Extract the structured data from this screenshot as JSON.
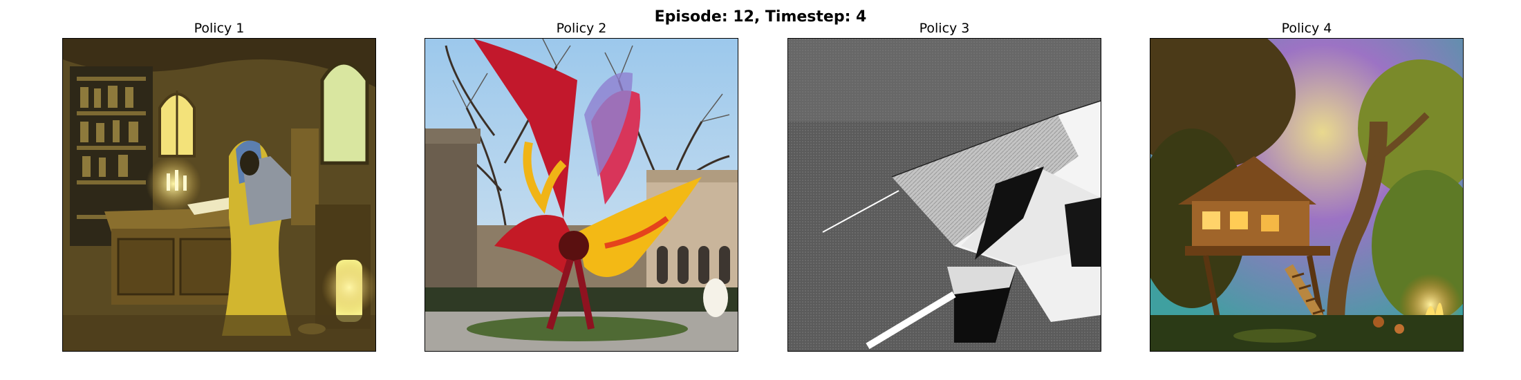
{
  "figure": {
    "suptitle": "Episode: 12, Timestep: 4",
    "panels": [
      {
        "title": "Policy 1"
      },
      {
        "title": "Policy 2"
      },
      {
        "title": "Policy 3"
      },
      {
        "title": "Policy 4"
      }
    ]
  }
}
